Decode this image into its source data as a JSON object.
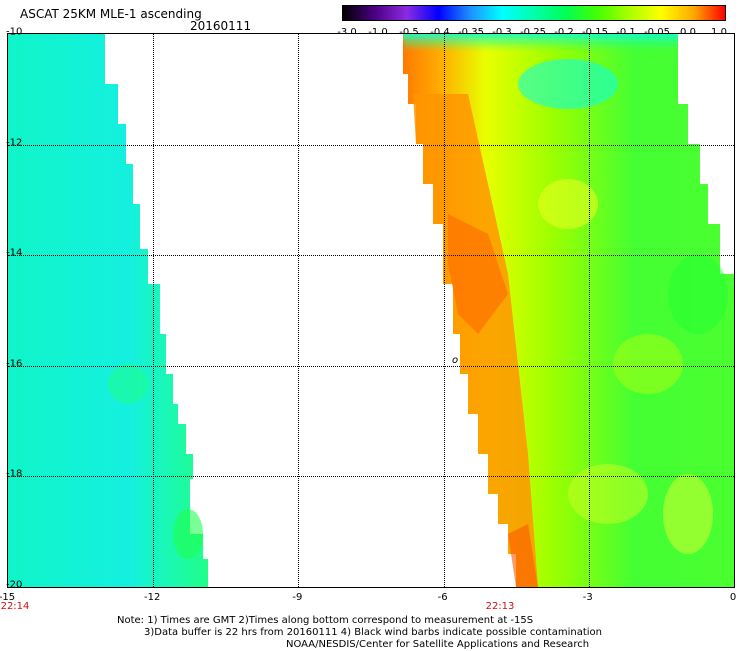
{
  "header": {
    "title": "ASCAT 25KM MLE-1 ascending",
    "date": "20160111"
  },
  "colorbar": {
    "labels": [
      "-3.0",
      "-1.0",
      "-0.5",
      "-0.4",
      "-0.35",
      "-0.3",
      "-0.25",
      "-0.2",
      "-0.15",
      "-0.1",
      "-0.05",
      "0.0",
      "1.0"
    ],
    "colors": [
      "#000000",
      "#4b0082",
      "#8a2be2",
      "#0000ff",
      "#1e90ff",
      "#00ffff",
      "#00ffaa",
      "#00ff55",
      "#44ff00",
      "#aaff00",
      "#ffff00",
      "#ffaa00",
      "#ff0000"
    ]
  },
  "axes": {
    "x_ticks": [
      "-15",
      "-12",
      "-9",
      "-6",
      "-3",
      "0"
    ],
    "y_ticks": [
      "-10",
      "-12",
      "-14",
      "-16",
      "-18",
      "-20"
    ]
  },
  "times": {
    "left": "22:14",
    "right": "22:13"
  },
  "marker": "o",
  "note": {
    "line1": "Note: 1) Times are GMT 2)Times along bottom correspond to measurement at -15S",
    "line2": "3)Data buffer is 22 hrs from 20160111 4) Black wind barbs indicate possible contamination",
    "line3": "NOAA/NESDIS/Center for Satellite Applications and Research"
  },
  "map_data": {
    "lon_range": [
      -15,
      0
    ],
    "lat_range": [
      -20,
      -10
    ],
    "swaths": [
      {
        "name": "west",
        "dominant_color": "#00ffcc"
      },
      {
        "name": "east",
        "dominant_color": "#66ff33",
        "coastal_color": "#ff8800"
      }
    ]
  }
}
